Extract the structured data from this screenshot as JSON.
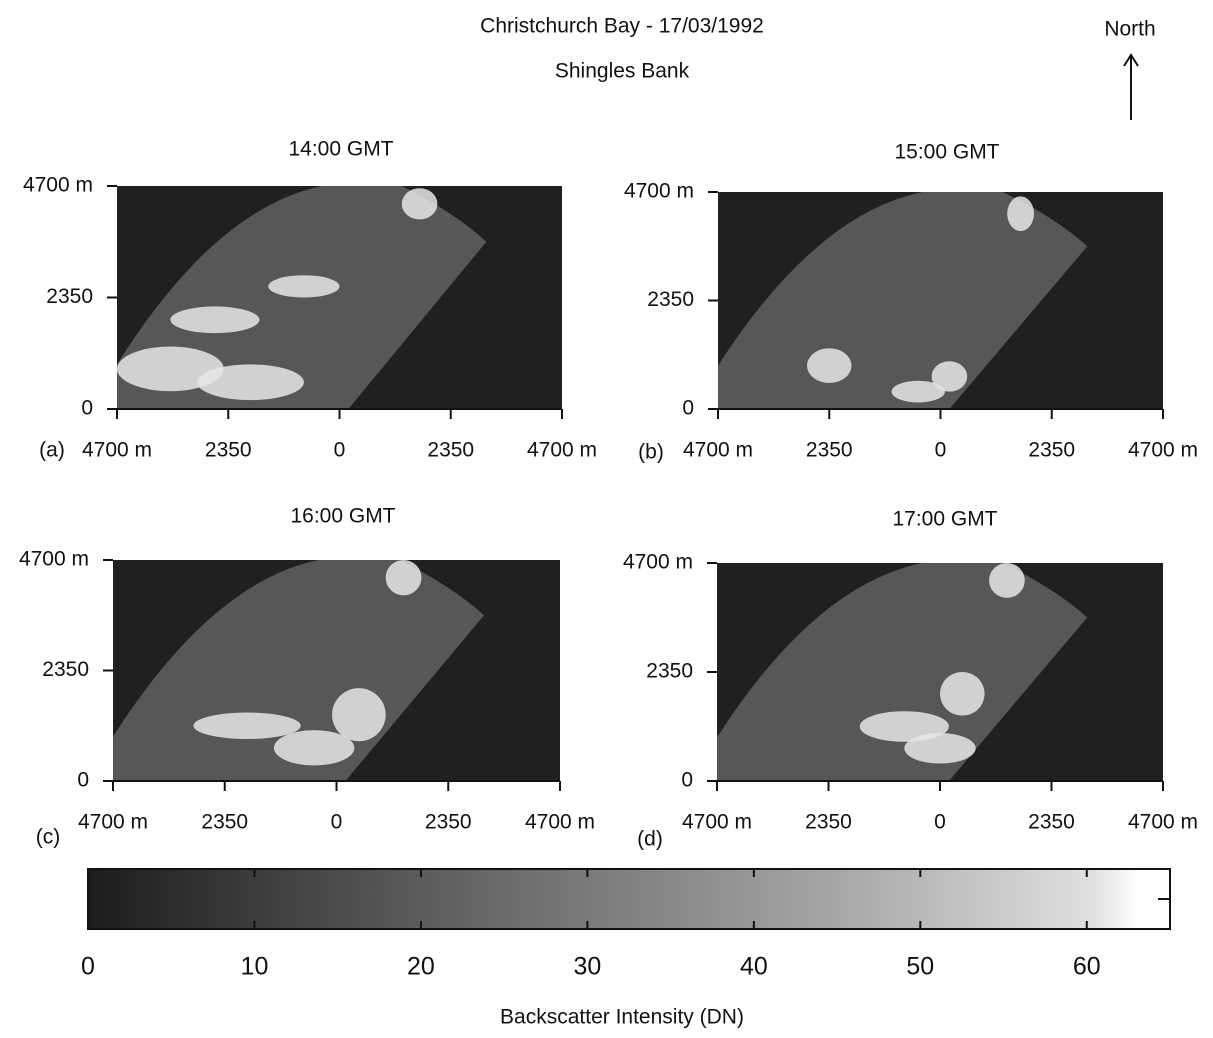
{
  "chart_data": {
    "type": "image-grid",
    "title": "Christchurch Bay - 17/03/1992",
    "subtitle": "Shingles Bank",
    "annotation": "North",
    "panels": [
      {
        "title": "14:00 GMT",
        "label": "(a)"
      },
      {
        "title": "15:00 GMT",
        "label": "(b)"
      },
      {
        "title": "16:00 GMT",
        "label": "(c)"
      },
      {
        "title": "17:00 GMT",
        "label": "(d)"
      }
    ],
    "xlim": [
      -4700,
      4700
    ],
    "ylim": [
      0,
      4700
    ],
    "xticks": [
      {
        "value": -4700,
        "label": "4700 m"
      },
      {
        "value": -2350,
        "label": "2350"
      },
      0,
      2350,
      {
        "value": 4700,
        "label": "4700 m"
      }
    ],
    "yticks": [
      0,
      2350,
      {
        "value": 4700,
        "label": "4700 m"
      }
    ],
    "colorbar": {
      "label": "Backscatter Intensity (DN)",
      "lim": [
        0,
        65
      ],
      "ticks": [
        0,
        10,
        20,
        30,
        40,
        50,
        60
      ]
    }
  }
}
